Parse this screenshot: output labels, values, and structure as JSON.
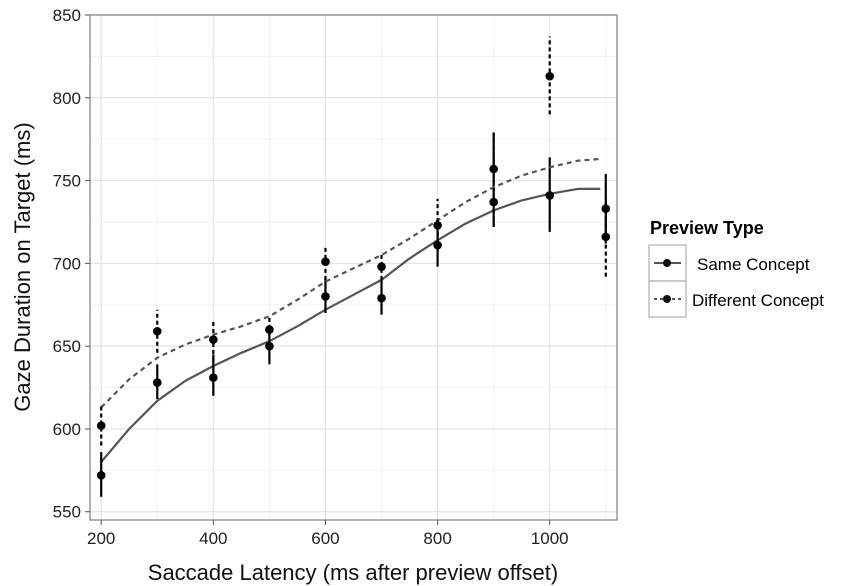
{
  "chart_data": {
    "type": "scatter",
    "xlabel": "Saccade Latency (ms after preview offset)",
    "ylabel": "Gaze Duration on Target (ms)",
    "xlim": [
      180,
      1120
    ],
    "ylim": [
      545,
      850
    ],
    "xticks": [
      200,
      400,
      600,
      800,
      1000
    ],
    "yticks": [
      550,
      600,
      650,
      700,
      750,
      800,
      850
    ],
    "grid": true,
    "legend": {
      "title": "Preview Type",
      "placement": "right"
    },
    "series": [
      {
        "name": "Same Concept",
        "line_style": "solid",
        "color": "#555555",
        "points": [
          {
            "x": 200,
            "y": 572,
            "lo": 559,
            "hi": 586
          },
          {
            "x": 300,
            "y": 628,
            "lo": 618,
            "hi": 639
          },
          {
            "x": 400,
            "y": 631,
            "lo": 620,
            "hi": 645
          },
          {
            "x": 500,
            "y": 650,
            "lo": 639,
            "hi": 661
          },
          {
            "x": 600,
            "y": 680,
            "lo": 670,
            "hi": 691
          },
          {
            "x": 700,
            "y": 679,
            "lo": 669,
            "hi": 690
          },
          {
            "x": 800,
            "y": 711,
            "lo": 698,
            "hi": 724
          },
          {
            "x": 900,
            "y": 737,
            "lo": 722,
            "hi": 779
          },
          {
            "x": 1000,
            "y": 741,
            "lo": 719,
            "hi": 764
          },
          {
            "x": 1100,
            "y": 733,
            "lo": 712,
            "hi": 754
          }
        ],
        "smooth": [
          {
            "x": 200,
            "y": 580
          },
          {
            "x": 250,
            "y": 600
          },
          {
            "x": 300,
            "y": 617
          },
          {
            "x": 350,
            "y": 629
          },
          {
            "x": 400,
            "y": 638
          },
          {
            "x": 450,
            "y": 646
          },
          {
            "x": 500,
            "y": 653
          },
          {
            "x": 550,
            "y": 662
          },
          {
            "x": 600,
            "y": 672
          },
          {
            "x": 650,
            "y": 681
          },
          {
            "x": 700,
            "y": 690
          },
          {
            "x": 750,
            "y": 703
          },
          {
            "x": 800,
            "y": 714
          },
          {
            "x": 850,
            "y": 724
          },
          {
            "x": 900,
            "y": 732
          },
          {
            "x": 950,
            "y": 738
          },
          {
            "x": 1000,
            "y": 742
          },
          {
            "x": 1050,
            "y": 745
          },
          {
            "x": 1090,
            "y": 745
          }
        ]
      },
      {
        "name": "Different Concept",
        "line_style": "dashed",
        "color": "#555555",
        "points": [
          {
            "x": 200,
            "y": 602,
            "lo": 590,
            "hi": 614
          },
          {
            "x": 300,
            "y": 659,
            "lo": 646,
            "hi": 672
          },
          {
            "x": 400,
            "y": 654,
            "lo": 641,
            "hi": 666
          },
          {
            "x": 500,
            "y": 660,
            "lo": 652,
            "hi": 668
          },
          {
            "x": 600,
            "y": 701,
            "lo": 690,
            "hi": 710
          },
          {
            "x": 700,
            "y": 698,
            "lo": 690,
            "hi": 707
          },
          {
            "x": 800,
            "y": 723,
            "lo": 708,
            "hi": 739
          },
          {
            "x": 900,
            "y": 757,
            "lo": 722,
            "hi": 779
          },
          {
            "x": 1000,
            "y": 813,
            "lo": 790,
            "hi": 837
          },
          {
            "x": 1100,
            "y": 716,
            "lo": 692,
            "hi": 739
          }
        ],
        "smooth": [
          {
            "x": 200,
            "y": 613
          },
          {
            "x": 250,
            "y": 630
          },
          {
            "x": 300,
            "y": 643
          },
          {
            "x": 350,
            "y": 651
          },
          {
            "x": 400,
            "y": 657
          },
          {
            "x": 450,
            "y": 662
          },
          {
            "x": 500,
            "y": 668
          },
          {
            "x": 550,
            "y": 678
          },
          {
            "x": 600,
            "y": 689
          },
          {
            "x": 650,
            "y": 697
          },
          {
            "x": 700,
            "y": 705
          },
          {
            "x": 750,
            "y": 715
          },
          {
            "x": 800,
            "y": 726
          },
          {
            "x": 850,
            "y": 737
          },
          {
            "x": 900,
            "y": 746
          },
          {
            "x": 950,
            "y": 753
          },
          {
            "x": 1000,
            "y": 758
          },
          {
            "x": 1050,
            "y": 762
          },
          {
            "x": 1090,
            "y": 763
          }
        ]
      }
    ]
  }
}
